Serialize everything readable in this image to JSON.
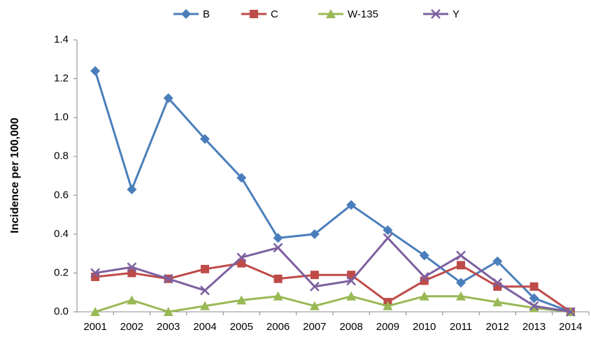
{
  "chart_data": {
    "type": "line",
    "y_label": "Incidence per 100,000",
    "categories": [
      "2001",
      "2002",
      "2003",
      "2004",
      "2005",
      "2006",
      "2007",
      "2008",
      "2009",
      "2010",
      "2011",
      "2012",
      "2013",
      "2014"
    ],
    "series": [
      {
        "name": "B",
        "color": "#4a7ebb",
        "marker": "diamond",
        "values": [
          1.24,
          0.63,
          1.1,
          0.89,
          0.69,
          0.38,
          0.4,
          0.55,
          0.42,
          0.29,
          0.15,
          0.26,
          0.07,
          0
        ]
      },
      {
        "name": "C",
        "color": "#be4b48",
        "marker": "square",
        "values": [
          0.18,
          0.2,
          0.17,
          0.22,
          0.25,
          0.17,
          0.19,
          0.19,
          0.05,
          0.16,
          0.24,
          0.13,
          0.13,
          0
        ]
      },
      {
        "name": "W-135",
        "color": "#98b954",
        "marker": "triangle",
        "values": [
          0,
          0.06,
          0,
          0.03,
          0.06,
          0.08,
          0.03,
          0.08,
          0.03,
          0.08,
          0.08,
          0.05,
          0.02,
          0
        ]
      },
      {
        "name": "Y",
        "color": "#7d60a0",
        "marker": "x",
        "values": [
          0.2,
          0.23,
          0.17,
          0.11,
          0.28,
          0.33,
          0.13,
          0.16,
          0.38,
          0.18,
          0.29,
          0.15,
          0.03,
          0
        ]
      }
    ],
    "ylim": [
      0,
      1.4
    ],
    "yticks": [
      {
        "value": 0,
        "label": "0.0"
      },
      0.2,
      0.4,
      0.6,
      0.8,
      {
        "value": 1,
        "label": "1.0"
      },
      1.2,
      1.4
    ],
    "legend": "top"
  }
}
